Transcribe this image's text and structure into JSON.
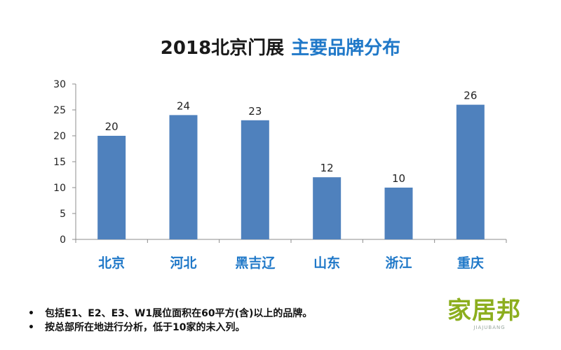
{
  "chart_data": {
    "type": "bar",
    "title_part1": "2018北京门展",
    "title_part2": "主要品牌分布",
    "categories": [
      "北京",
      "河北",
      "黑吉辽",
      "山东",
      "浙江",
      "重庆"
    ],
    "values": [
      20,
      24,
      23,
      12,
      10,
      26
    ],
    "data_labels": [
      "20",
      "24",
      "23",
      "12",
      "10",
      "26"
    ],
    "yticks": [
      "0",
      "5",
      "10",
      "15",
      "20",
      "25",
      "30"
    ],
    "ylim": [
      0,
      30
    ],
    "grid": false,
    "legend": "none",
    "xlabel": "",
    "ylabel": ""
  },
  "notes": [
    {
      "bullet": "•",
      "text": "包括E1、E2、E3、W1展位面积在60平方(含)以上的品牌。"
    },
    {
      "bullet": "•",
      "text": "按总部所在地进行分析，低于10家的未入列。"
    }
  ],
  "logo": {
    "text": "家居邦",
    "sub": "JIAJUBANG"
  },
  "colors": {
    "bar": "#4f81bd",
    "category_label": "#1f78c8",
    "title_accent": "#1f78c8",
    "logo": "#8cae1e"
  }
}
